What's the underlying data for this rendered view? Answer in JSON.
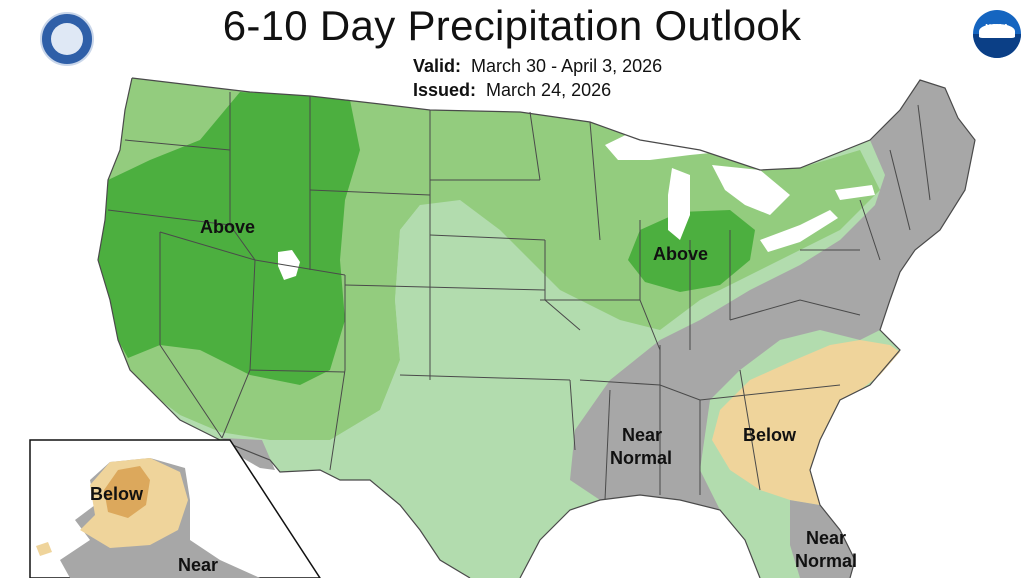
{
  "header": {
    "title": "6-10 Day Precipitation Outlook",
    "valid_label": "Valid:",
    "valid_value": "March 30 - April 3, 2026",
    "issued_label": "Issued:",
    "issued_value": "March 24, 2026"
  },
  "logos": {
    "left": "department-of-commerce-seal",
    "right_text": "NOAA"
  },
  "map_labels": {
    "west_above": "Above",
    "midwest_above": "Above",
    "southeast_below": "Below",
    "gulf_near_1": "Near",
    "gulf_near_2": "Normal",
    "florida_near_1": "Near",
    "florida_near_2": "Normal",
    "alaska_below": "Below",
    "alaska_near": "Near"
  },
  "colors": {
    "above_strong": "#4caf3f",
    "above_medium": "#93cc7e",
    "above_light": "#b2dcae",
    "near_normal": "#a7a7a7",
    "below_light": "#efd49b",
    "below_medium": "#dca85c",
    "water": "#ffffff",
    "border": "#4a4a4a"
  }
}
